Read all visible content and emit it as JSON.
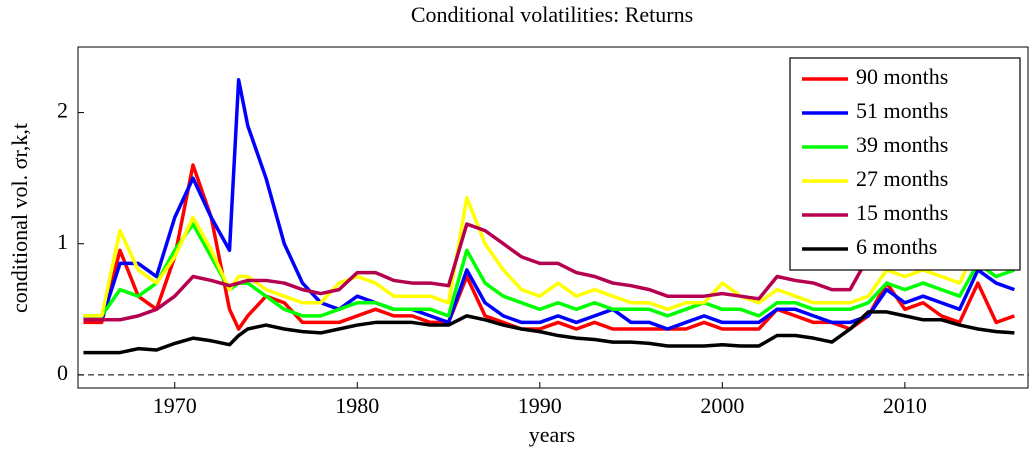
{
  "chart_data": {
    "type": "line",
    "title": "Conditional volatilities: Returns",
    "x_label": "years",
    "y_label": "conditional vol. σr,k,t",
    "x": [
      1965,
      1966,
      1967,
      1968,
      1969,
      1970,
      1971,
      1972,
      1973,
      1973.5,
      1974,
      1975,
      1976,
      1977,
      1978,
      1979,
      1980,
      1981,
      1982,
      1983,
      1984,
      1985,
      1986,
      1987,
      1988,
      1989,
      1990,
      1991,
      1992,
      1993,
      1994,
      1995,
      1996,
      1997,
      1998,
      1999,
      2000,
      2001,
      2002,
      2003,
      2004,
      2005,
      2006,
      2007,
      2008,
      2009,
      2010,
      2011,
      2012,
      2013,
      2014,
      2015,
      2016
    ],
    "series": [
      {
        "name": "90 months",
        "color": "#ff0000",
        "values": [
          0.4,
          0.4,
          0.95,
          0.6,
          0.5,
          0.9,
          1.6,
          1.2,
          0.5,
          0.35,
          0.45,
          0.6,
          0.55,
          0.4,
          0.4,
          0.4,
          0.45,
          0.5,
          0.45,
          0.45,
          0.4,
          0.4,
          0.75,
          0.45,
          0.4,
          0.35,
          0.35,
          0.4,
          0.35,
          0.4,
          0.35,
          0.35,
          0.35,
          0.35,
          0.35,
          0.4,
          0.35,
          0.35,
          0.35,
          0.5,
          0.45,
          0.4,
          0.4,
          0.35,
          0.45,
          0.7,
          0.5,
          0.55,
          0.45,
          0.4,
          0.7,
          0.4,
          0.45
        ]
      },
      {
        "name": "51 months",
        "color": "#0000ff",
        "values": [
          0.45,
          0.42,
          0.85,
          0.85,
          0.75,
          1.2,
          1.5,
          1.2,
          0.95,
          2.25,
          1.9,
          1.5,
          1.0,
          0.7,
          0.55,
          0.5,
          0.6,
          0.55,
          0.5,
          0.5,
          0.45,
          0.4,
          0.8,
          0.55,
          0.45,
          0.4,
          0.4,
          0.45,
          0.4,
          0.45,
          0.5,
          0.4,
          0.4,
          0.35,
          0.4,
          0.45,
          0.4,
          0.4,
          0.4,
          0.5,
          0.5,
          0.45,
          0.4,
          0.4,
          0.45,
          0.65,
          0.55,
          0.6,
          0.55,
          0.5,
          0.8,
          0.7,
          0.65
        ]
      },
      {
        "name": "39 months",
        "color": "#00ff00",
        "values": [
          0.45,
          0.45,
          0.65,
          0.6,
          0.7,
          0.95,
          1.15,
          0.9,
          0.65,
          0.7,
          0.7,
          0.6,
          0.5,
          0.45,
          0.45,
          0.5,
          0.55,
          0.55,
          0.5,
          0.5,
          0.5,
          0.45,
          0.95,
          0.7,
          0.6,
          0.55,
          0.5,
          0.55,
          0.5,
          0.55,
          0.5,
          0.5,
          0.5,
          0.45,
          0.5,
          0.55,
          0.5,
          0.5,
          0.45,
          0.55,
          0.55,
          0.5,
          0.5,
          0.5,
          0.55,
          0.7,
          0.65,
          0.7,
          0.65,
          0.6,
          0.85,
          0.75,
          0.8
        ]
      },
      {
        "name": "27 months",
        "color": "#ffff00",
        "values": [
          0.45,
          0.45,
          1.1,
          0.8,
          0.7,
          0.9,
          1.2,
          0.95,
          0.65,
          0.75,
          0.75,
          0.65,
          0.6,
          0.55,
          0.55,
          0.7,
          0.75,
          0.7,
          0.6,
          0.6,
          0.6,
          0.55,
          1.35,
          1.0,
          0.8,
          0.65,
          0.6,
          0.7,
          0.6,
          0.65,
          0.6,
          0.55,
          0.55,
          0.5,
          0.55,
          0.55,
          0.7,
          0.6,
          0.55,
          0.65,
          0.6,
          0.55,
          0.55,
          0.55,
          0.6,
          0.8,
          0.75,
          0.8,
          0.75,
          0.7,
          1.0,
          0.9,
          0.95
        ]
      },
      {
        "name": "15 months",
        "color": "#b5004f",
        "values": [
          0.42,
          0.42,
          0.42,
          0.45,
          0.5,
          0.6,
          0.75,
          0.72,
          0.68,
          0.7,
          0.72,
          0.72,
          0.7,
          0.65,
          0.62,
          0.65,
          0.78,
          0.78,
          0.72,
          0.7,
          0.7,
          0.68,
          1.15,
          1.1,
          1.0,
          0.9,
          0.85,
          0.85,
          0.78,
          0.75,
          0.7,
          0.68,
          0.65,
          0.6,
          0.6,
          0.6,
          0.62,
          0.6,
          0.58,
          0.75,
          0.72,
          0.7,
          0.65,
          0.65,
          0.9,
          0.95,
          0.95,
          0.95,
          0.95,
          0.95,
          1.15,
          1.1,
          1.05
        ]
      },
      {
        "name": "6 months",
        "color": "#000000",
        "values": [
          0.17,
          0.17,
          0.17,
          0.2,
          0.19,
          0.24,
          0.28,
          0.26,
          0.23,
          0.3,
          0.35,
          0.38,
          0.35,
          0.33,
          0.32,
          0.35,
          0.38,
          0.4,
          0.4,
          0.4,
          0.38,
          0.38,
          0.45,
          0.42,
          0.38,
          0.35,
          0.33,
          0.3,
          0.28,
          0.27,
          0.25,
          0.25,
          0.24,
          0.22,
          0.22,
          0.22,
          0.23,
          0.22,
          0.22,
          0.3,
          0.3,
          0.28,
          0.25,
          0.35,
          0.48,
          0.48,
          0.45,
          0.42,
          0.42,
          0.38,
          0.35,
          0.33,
          0.32
        ]
      }
    ],
    "xlim": [
      1964.7,
      2016.8
    ],
    "xticks": [
      1970,
      1980,
      1990,
      2000,
      2010
    ],
    "ylim": [
      -0.1,
      2.5
    ],
    "yticks": [
      0,
      1,
      2
    ],
    "hlines": [
      0
    ],
    "legend": "upper right"
  }
}
